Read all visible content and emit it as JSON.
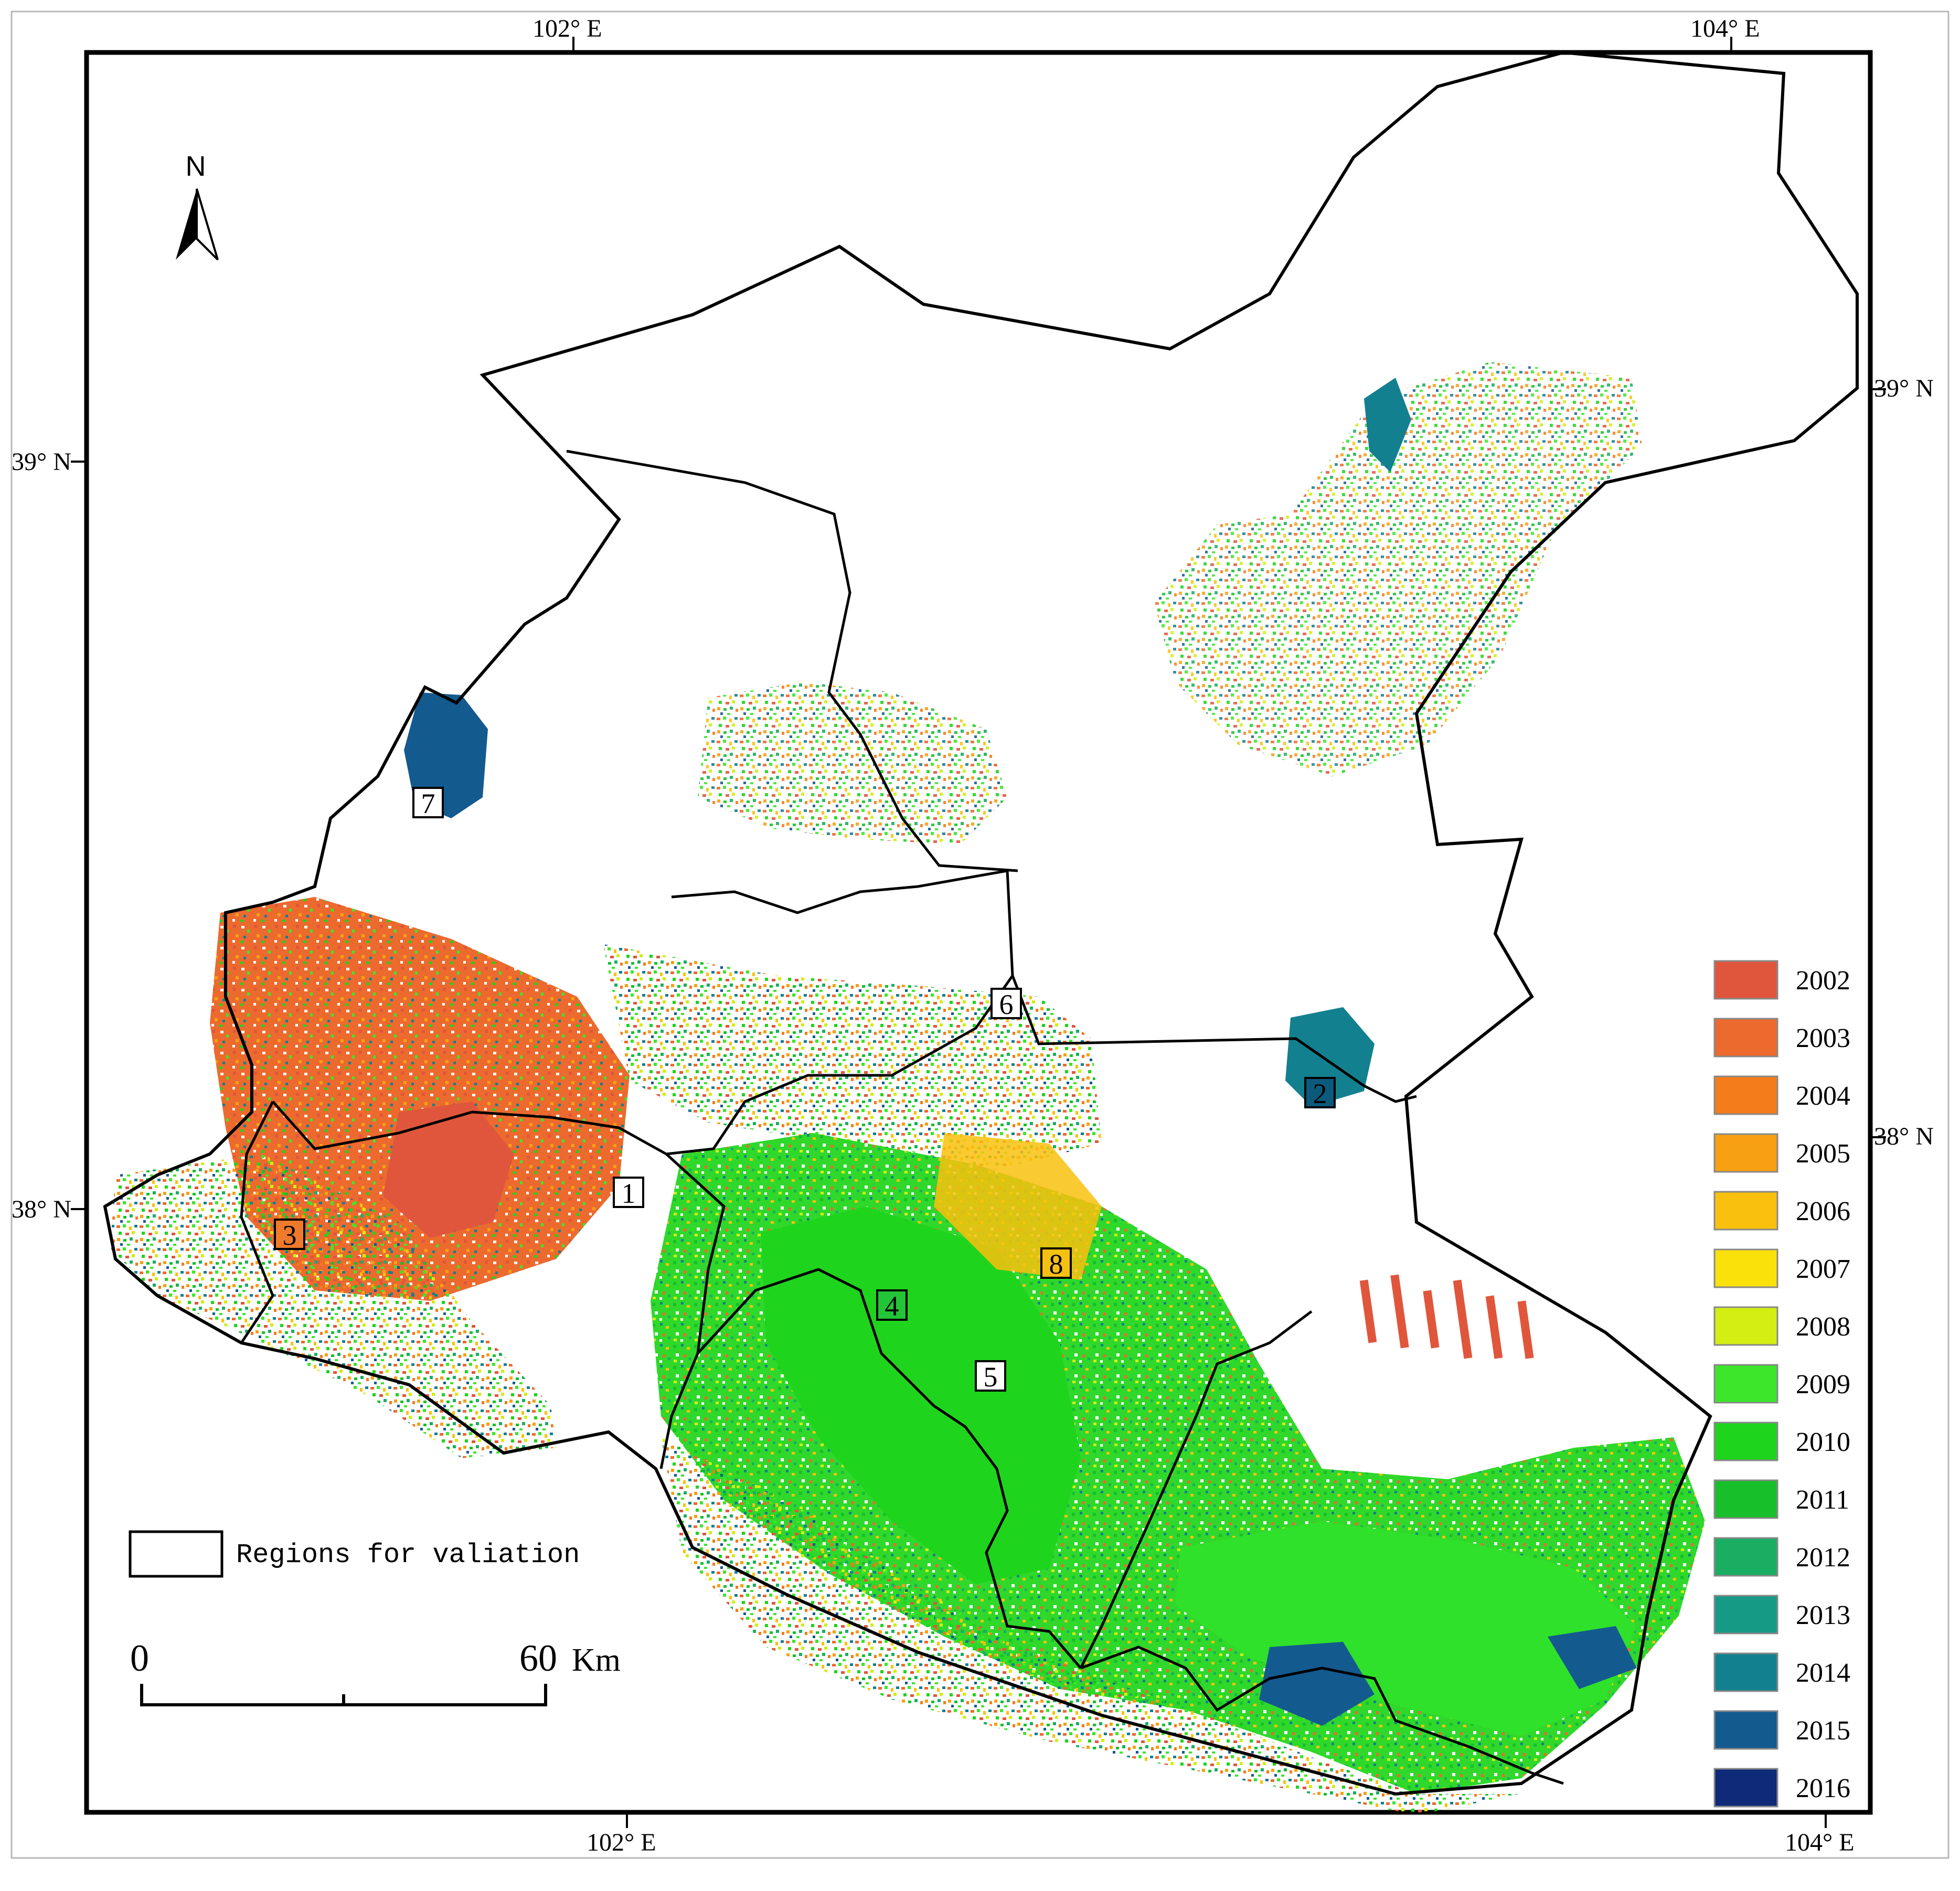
{
  "coordinates": {
    "top_left_lon": "102° E",
    "top_right_lon": "104° E",
    "bottom_left_lon": "102° E",
    "bottom_right_lon": "104° E",
    "left_upper_lat": "39° N",
    "left_lower_lat": "38° N",
    "right_upper_lat": "39° N",
    "right_lower_lat": "38° N"
  },
  "north_arrow": {
    "label": "N"
  },
  "validation_legend": {
    "label": "Regions for valiation"
  },
  "scale_bar": {
    "start": "0",
    "end": "60",
    "unit": "Km"
  },
  "sites": [
    {
      "id": "1",
      "label": "1",
      "fill": "#ffffff"
    },
    {
      "id": "2",
      "label": "2",
      "fill": "#0b5a7c"
    },
    {
      "id": "3",
      "label": "3",
      "fill": "#f07a2c"
    },
    {
      "id": "4",
      "label": "4",
      "fill": "#23c437"
    },
    {
      "id": "5",
      "label": "5",
      "fill": "#ffffff"
    },
    {
      "id": "6",
      "label": "6",
      "fill": "#ffffff"
    },
    {
      "id": "7",
      "label": "7",
      "fill": "#ffffff"
    },
    {
      "id": "8",
      "label": "8",
      "fill": "#f6c012"
    }
  ],
  "legend": [
    {
      "year": "2002",
      "color": "#e0563c"
    },
    {
      "year": "2003",
      "color": "#ec6a2e"
    },
    {
      "year": "2004",
      "color": "#f47c1a"
    },
    {
      "year": "2005",
      "color": "#f7a013"
    },
    {
      "year": "2006",
      "color": "#f9c10e"
    },
    {
      "year": "2007",
      "color": "#fbe10a"
    },
    {
      "year": "2008",
      "color": "#d2ee13"
    },
    {
      "year": "2009",
      "color": "#3de62a"
    },
    {
      "year": "2010",
      "color": "#1fd41d"
    },
    {
      "year": "2011",
      "color": "#17c02a"
    },
    {
      "year": "2012",
      "color": "#1aae63"
    },
    {
      "year": "2013",
      "color": "#159a86"
    },
    {
      "year": "2014",
      "color": "#12808f"
    },
    {
      "year": "2015",
      "color": "#135a8f"
    },
    {
      "year": "2016",
      "color": "#0e2a78"
    }
  ]
}
